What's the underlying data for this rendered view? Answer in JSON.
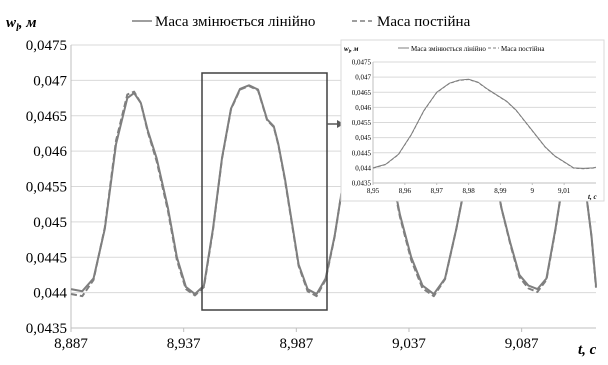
{
  "chart_data": [
    {
      "type": "line",
      "title": "",
      "xlabel": "t, c",
      "ylabel": "w_l, м",
      "xlim": [
        8.887,
        9.12
      ],
      "ylim": [
        0.0435,
        0.0475
      ],
      "x_ticks": [
        "8,887",
        "8,937",
        "8,987",
        "9,037",
        "9,087"
      ],
      "y_ticks": [
        "0,0435",
        "0,044",
        "0,0445",
        "0,045",
        "0,0455",
        "0,046",
        "0,0465",
        "0,047",
        "0,0475"
      ],
      "grid": "horizontal",
      "legend": "top",
      "series": [
        {
          "name": "Маса змінюється лінійно",
          "color": "#7f7f7f",
          "dash": "solid",
          "x": [
            8.887,
            8.892,
            8.897,
            8.902,
            8.907,
            8.912,
            8.915,
            8.918,
            8.921,
            8.925,
            8.93,
            8.934,
            8.938,
            8.942,
            8.946,
            8.95,
            8.954,
            8.958,
            8.962,
            8.966,
            8.97,
            8.974,
            8.977,
            8.979,
            8.982,
            8.985,
            8.988,
            8.992,
            8.996,
            9.0,
            9.004,
            9.008,
            9.013,
            9.018,
            9.023,
            9.028,
            9.033,
            9.038,
            9.043,
            9.048,
            9.053,
            9.058,
            9.063,
            9.067,
            9.07,
            9.074,
            9.078,
            9.082,
            9.086,
            9.09,
            9.094,
            9.098,
            9.102,
            9.106,
            9.11,
            9.114,
            9.118,
            9.12
          ],
          "y": [
            0.04405,
            0.04402,
            0.0442,
            0.0449,
            0.0461,
            0.04675,
            0.04682,
            0.04668,
            0.0463,
            0.0459,
            0.0452,
            0.0445,
            0.04408,
            0.04398,
            0.0441,
            0.0449,
            0.0459,
            0.0466,
            0.04688,
            0.04693,
            0.04687,
            0.04645,
            0.04635,
            0.0461,
            0.0456,
            0.045,
            0.0444,
            0.04405,
            0.04398,
            0.0442,
            0.0448,
            0.0456,
            0.0464,
            0.0468,
            0.04655,
            0.0459,
            0.0451,
            0.0445,
            0.0441,
            0.04398,
            0.0442,
            0.0449,
            0.0457,
            0.0461,
            0.0462,
            0.0459,
            0.0452,
            0.0447,
            0.04425,
            0.0441,
            0.04405,
            0.0442,
            0.0449,
            0.0457,
            0.0462,
            0.0458,
            0.0448,
            0.0441
          ]
        },
        {
          "name": "Маса постійна",
          "color": "#7f7f7f",
          "dash": "dashed",
          "x": [
            8.887,
            8.892,
            8.897,
            8.902,
            8.907,
            8.912,
            8.915,
            8.918,
            8.921,
            8.925,
            8.93,
            8.934,
            8.938,
            8.942,
            8.946,
            8.95,
            8.954,
            8.958,
            8.962,
            8.966,
            8.97,
            8.974,
            8.977,
            8.979,
            8.982,
            8.985,
            8.988,
            8.992,
            8.996,
            9.0,
            9.004,
            9.008,
            9.013,
            9.018,
            9.023,
            9.028,
            9.033,
            9.038,
            9.043,
            9.048,
            9.053,
            9.058,
            9.063,
            9.067,
            9.07,
            9.074,
            9.078,
            9.082,
            9.086,
            9.09,
            9.094,
            9.098,
            9.102,
            9.106,
            9.11,
            9.114,
            9.118,
            9.12
          ],
          "y": [
            0.04398,
            0.04395,
            0.04418,
            0.04492,
            0.04615,
            0.0468,
            0.04684,
            0.04668,
            0.04628,
            0.04586,
            0.04516,
            0.04446,
            0.04405,
            0.04396,
            0.04408,
            0.04488,
            0.04589,
            0.04659,
            0.04687,
            0.04692,
            0.04686,
            0.04644,
            0.04634,
            0.04609,
            0.04558,
            0.04498,
            0.04438,
            0.04402,
            0.04395,
            0.04418,
            0.04479,
            0.04561,
            0.04642,
            0.04683,
            0.04654,
            0.04588,
            0.04507,
            0.04446,
            0.04406,
            0.04395,
            0.04419,
            0.0449,
            0.04572,
            0.04612,
            0.04622,
            0.04591,
            0.0452,
            0.04468,
            0.04422,
            0.04406,
            0.04401,
            0.04418,
            0.04489,
            0.04571,
            0.04622,
            0.04582,
            0.04479,
            0.04407
          ]
        }
      ],
      "annotations": [
        "zoom-rectangle",
        "arrow-to-inset"
      ]
    },
    {
      "type": "line",
      "title": "",
      "xlabel": "t, c",
      "ylabel": "w_l, м",
      "xlim": [
        8.95,
        9.02
      ],
      "ylim": [
        0.0435,
        0.0475
      ],
      "x_ticks": [
        "8,95",
        "8,96",
        "8,97",
        "8,98",
        "8,99",
        "9",
        "9,01"
      ],
      "y_ticks": [
        "0,0435",
        "0,044",
        "0,0445",
        "0,045",
        "0,0455",
        "0,046",
        "0,0465",
        "0,047",
        "0,0475"
      ],
      "grid": "horizontal",
      "legend": "top",
      "series": [
        {
          "name": "Маса змінюється лінійно",
          "color": "#7f7f7f",
          "dash": "solid",
          "x": [
            8.95,
            8.954,
            8.958,
            8.962,
            8.966,
            8.97,
            8.974,
            8.977,
            8.98,
            8.983,
            8.986,
            8.989,
            8.992,
            8.995,
            8.998,
            9.001,
            9.004,
            9.007,
            9.01,
            9.013,
            9.016,
            9.019,
            9.02
          ],
          "y": [
            0.044,
            0.04412,
            0.04445,
            0.0451,
            0.0459,
            0.0465,
            0.0468,
            0.0469,
            0.04693,
            0.04683,
            0.0466,
            0.0464,
            0.0462,
            0.0459,
            0.0455,
            0.0451,
            0.0447,
            0.0444,
            0.0442,
            0.044,
            0.04398,
            0.044,
            0.04402
          ]
        },
        {
          "name": "Маса постійна",
          "color": "#7f7f7f",
          "dash": "dashed",
          "x": [
            8.95,
            8.954,
            8.958,
            8.962,
            8.966,
            8.97,
            8.974,
            8.977,
            8.98,
            8.983,
            8.986,
            8.989,
            8.992,
            8.995,
            8.998,
            9.001,
            9.004,
            9.007,
            9.01,
            9.013,
            9.016,
            9.019,
            9.02
          ],
          "y": [
            0.04399,
            0.04411,
            0.04444,
            0.04509,
            0.04589,
            0.04649,
            0.04679,
            0.04689,
            0.04692,
            0.04682,
            0.04659,
            0.04639,
            0.04619,
            0.04589,
            0.04549,
            0.04509,
            0.04469,
            0.04439,
            0.04419,
            0.04399,
            0.04397,
            0.04399,
            0.04401
          ]
        }
      ]
    }
  ],
  "legend_main": [
    "Маса змінюється лінійно",
    "Маса постійна"
  ],
  "axis_main": {
    "y_title": "w",
    "y_sub": "l",
    "y_unit": ", м",
    "x_title": "t, c"
  },
  "axis_inset": {
    "y_title": "w",
    "y_sub": "l",
    "y_unit": ", м",
    "x_title": "t, c"
  }
}
